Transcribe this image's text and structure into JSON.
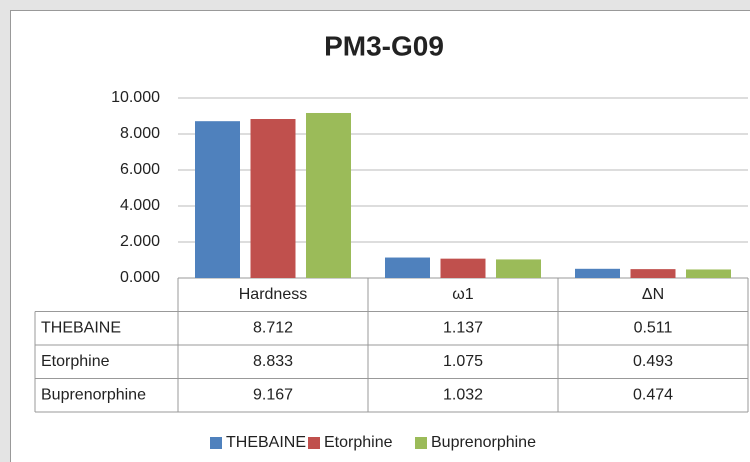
{
  "chart_data": {
    "type": "bar",
    "title": "PM3-G09",
    "categories": [
      "Hardness",
      "ω1",
      "ΔN"
    ],
    "series": [
      {
        "name": "THEBAINE",
        "color": "#4f81bd",
        "values": [
          8.712,
          1.137,
          0.511
        ]
      },
      {
        "name": "Etorphine",
        "color": "#c0504d",
        "values": [
          8.833,
          1.075,
          0.493
        ]
      },
      {
        "name": "Buprenorphine",
        "color": "#9bbb59",
        "values": [
          9.167,
          1.032,
          0.474
        ]
      }
    ],
    "ylim": [
      0,
      10
    ],
    "yticks": [
      {
        "value": 0,
        "label": "0.000"
      },
      {
        "value": 2,
        "label": "2.000"
      },
      {
        "value": 4,
        "label": "4.000"
      },
      {
        "value": 6,
        "label": "6.000"
      },
      {
        "value": 8,
        "label": "8.000"
      },
      {
        "value": 10,
        "label": "10.000"
      }
    ],
    "grid": true,
    "legend": "bottom"
  }
}
